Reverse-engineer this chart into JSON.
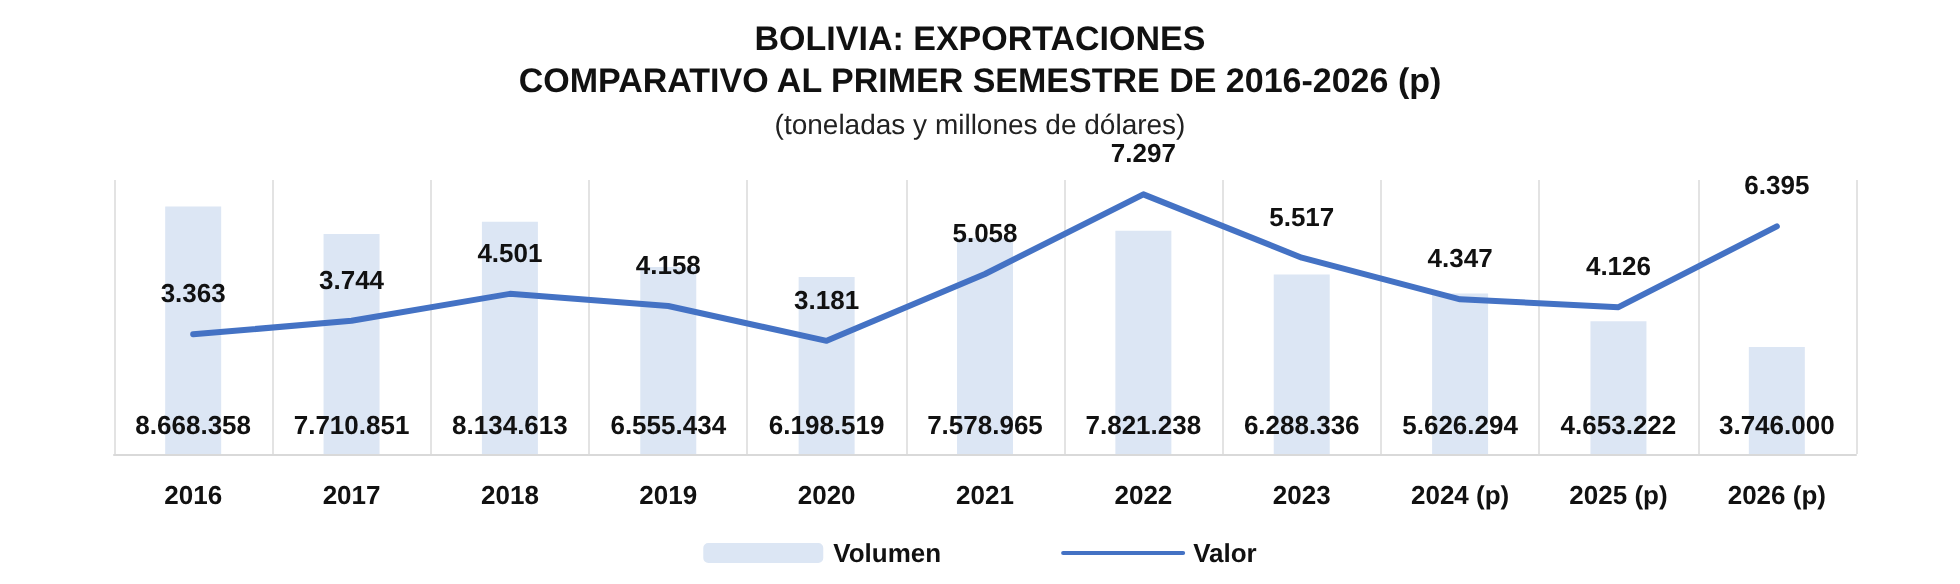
{
  "chart_data": {
    "type": "bar",
    "title": "BOLIVIA: EXPORTACIONES\nCOMPARATIVO AL PRIMER SEMESTRE DE 2016-2026 (p)",
    "subtitle": "(toneladas y millones de dólares)",
    "categories": [
      "2016",
      "2017",
      "2018",
      "2019",
      "2020",
      "2021",
      "2022",
      "2023",
      "2024 (p)",
      "2025 (p)",
      "2026 (p)"
    ],
    "series": [
      {
        "name": "Volumen",
        "color": "#dce6f4",
        "values": [
          8668358,
          7710851,
          8134613,
          6555434,
          6198519,
          7578965,
          7821238,
          6288336,
          5626294,
          4653222,
          3746000
        ],
        "value_labels": [
          "8.668.358",
          "7.710.851",
          "8.134.613",
          "6.555.434",
          "6.198.519",
          "7.578.965",
          "7.821.238",
          "6.288.336",
          "5.626.294",
          "4.653.222",
          "3.746.000"
        ]
      },
      {
        "name": "Valor",
        "type": "line",
        "axis": "y2",
        "color": "#4472c4",
        "values": [
          3363,
          3744,
          4501,
          4158,
          3181,
          5058,
          7297,
          5517,
          4347,
          4126,
          6395
        ],
        "value_labels": [
          "3.363",
          "3.744",
          "4.501",
          "4.158",
          "3.181",
          "5.058",
          "7.297",
          "5.517",
          "4.347",
          "4.126",
          "6.395"
        ]
      }
    ],
    "ylim": [
      0,
      9600000
    ],
    "y2lim": [
      0,
      7700
    ],
    "tick_labels": "x",
    "grid": "x",
    "legend": "bottom",
    "marker": "none"
  }
}
